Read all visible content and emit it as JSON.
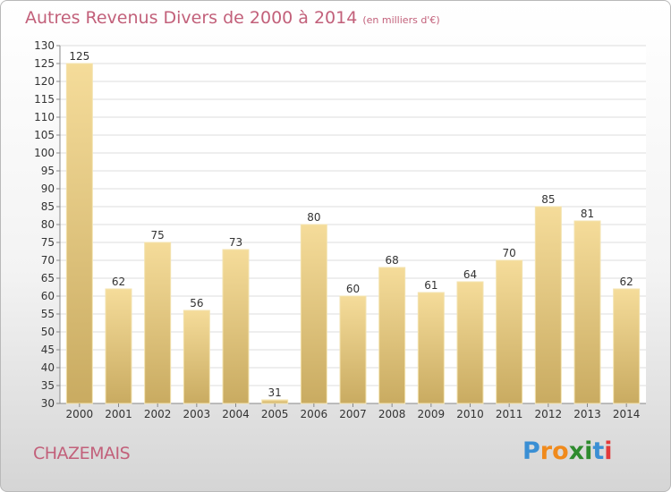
{
  "header": {
    "title": "Autres Revenus Divers de 2000 à 2014",
    "subtitle": "(en milliers d'€)"
  },
  "footer": {
    "city": "CHAZEMAIS"
  },
  "logo": {
    "text": "Proxiti",
    "letters": [
      "P",
      "r",
      "o",
      "x",
      "i",
      "t",
      "i"
    ],
    "colors": [
      "#3a8fd4",
      "#f08a1c",
      "#f08a1c",
      "#2e8b2e",
      "#2e8b2e",
      "#3a8fd4",
      "#e33a3a"
    ]
  },
  "chart_data": {
    "type": "bar",
    "title": "Autres Revenus Divers de 2000 à 2014",
    "subtitle": "(en milliers d'€)",
    "categories": [
      "2000",
      "2001",
      "2002",
      "2003",
      "2004",
      "2005",
      "2006",
      "2007",
      "2008",
      "2009",
      "2010",
      "2011",
      "2012",
      "2013",
      "2014"
    ],
    "values": [
      125,
      62,
      75,
      56,
      73,
      31,
      80,
      60,
      68,
      61,
      64,
      70,
      85,
      81,
      62
    ],
    "ylim": [
      30,
      130
    ],
    "ytick_step": 5,
    "grid": true,
    "legend": "none",
    "colors": {
      "bar_top": "#f5dc9a",
      "bar_bottom": "#c9ab61",
      "bar_edge": "#f3e3b0",
      "grid": "#dddddd",
      "axis": "#888888",
      "text": "#333333"
    }
  }
}
